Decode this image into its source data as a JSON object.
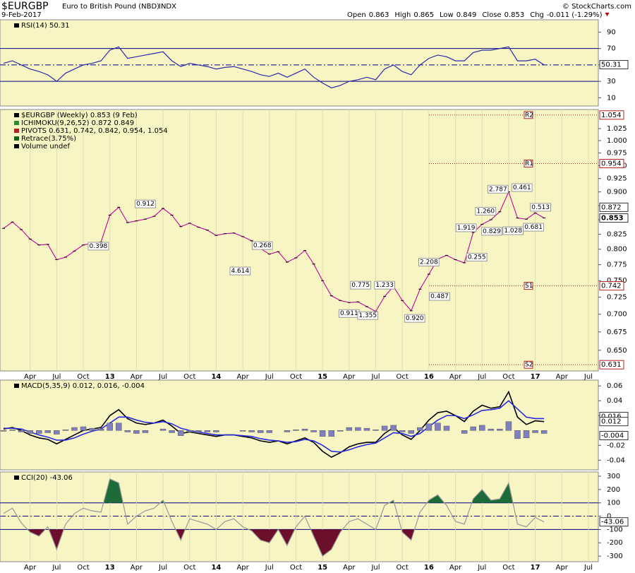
{
  "header": {
    "symbol": "$EURGBP",
    "name": "Euro to British Pound (NBD)",
    "exchange": "INDX",
    "date": "9-Feb-2017",
    "source": "© StockCharts.com",
    "quote": [
      {
        "label": "Open",
        "value": 0.863
      },
      {
        "label": "High",
        "value": 0.865
      },
      {
        "label": "Low",
        "value": 0.849
      },
      {
        "label": "Close",
        "value": 0.853
      },
      {
        "label": "Chg",
        "value": "-0.011 (-1.29%)"
      }
    ]
  },
  "chart_data": [
    {
      "type": "line",
      "panel": "rsi",
      "legend": [
        {
          "text": "RSI(14) 50.31",
          "color": "#000000"
        }
      ],
      "series": [
        {
          "name": "RSI(14)",
          "color": "#2a2aa8",
          "values": [
            52,
            55,
            50,
            45,
            42,
            38,
            30,
            40,
            45,
            50,
            52,
            55,
            68,
            72,
            58,
            60,
            62,
            64,
            66,
            55,
            48,
            52,
            50,
            48,
            45,
            47,
            48,
            45,
            42,
            38,
            36,
            40,
            35,
            40,
            45,
            35,
            28,
            22,
            25,
            30,
            32,
            35,
            32,
            45,
            50,
            42,
            38,
            50,
            58,
            62,
            60,
            55,
            55,
            65,
            68,
            68,
            70,
            72,
            55,
            55,
            57,
            50,
            null,
            null,
            null,
            null,
            null,
            null
          ]
        }
      ],
      "levels": [
        70,
        50,
        30
      ],
      "tag": 50.31,
      "ylim": [
        0,
        105
      ],
      "yticks": [
        10,
        30,
        50,
        70,
        90
      ]
    },
    {
      "type": "line",
      "panel": "price",
      "log": true,
      "legend": [
        {
          "text": "$EURGBP (Weekly) 0.853 (9 Feb)",
          "color": "#000000"
        },
        {
          "text": "ICHIMOKU(9,26,52) 0.872 0.849",
          "color": "#2e8b2e"
        },
        {
          "text": "PIVOTS 0.631, 0.742, 0.842, 0.954, 1.054",
          "color": "#b22222"
        },
        {
          "text": "Retrace(3.75%)",
          "color": "#1e5e1e"
        },
        {
          "text": "Volume undef",
          "color": "#000000"
        }
      ],
      "categories": [
        null,
        null,
        null,
        "Apr",
        null,
        null,
        "Jul",
        null,
        null,
        "Oct",
        null,
        null,
        "13",
        null,
        null,
        "Apr",
        null,
        null,
        "Jul",
        null,
        null,
        "Oct",
        null,
        null,
        "14",
        null,
        null,
        "Apr",
        null,
        null,
        "Jul",
        null,
        null,
        "Oct",
        null,
        null,
        "15",
        null,
        null,
        "Apr",
        null,
        null,
        "Jul",
        null,
        null,
        "Oct",
        null,
        null,
        "16",
        null,
        null,
        "Apr",
        null,
        null,
        "Jul",
        null,
        null,
        "Oct",
        null,
        null,
        "17",
        null,
        null,
        "Apr",
        null,
        null,
        "Jul",
        null
      ],
      "series": [
        {
          "name": "$EURGBP",
          "color": "#c0189a",
          "values": [
            0.835,
            0.846,
            0.833,
            0.817,
            0.807,
            0.808,
            0.783,
            0.787,
            0.797,
            0.807,
            0.81,
            0.812,
            0.858,
            0.872,
            0.845,
            0.848,
            0.851,
            0.856,
            0.87,
            0.858,
            0.838,
            0.844,
            0.837,
            0.832,
            0.823,
            0.826,
            0.827,
            0.821,
            0.814,
            0.801,
            0.792,
            0.796,
            0.779,
            0.786,
            0.798,
            0.776,
            0.75,
            0.727,
            0.72,
            0.717,
            0.718,
            0.711,
            0.704,
            0.726,
            0.741,
            0.72,
            0.705,
            0.737,
            0.76,
            0.784,
            0.79,
            0.783,
            0.778,
            0.828,
            0.842,
            0.85,
            0.864,
            0.9,
            0.853,
            0.851,
            0.862,
            0.853,
            null,
            null,
            null,
            null,
            null,
            null
          ]
        }
      ],
      "pivots": [
        {
          "label": "R2",
          "value": 1.054
        },
        {
          "label": "R1",
          "value": 0.954
        },
        {
          "label": "S1",
          "value": 0.742
        },
        {
          "label": "S2",
          "value": 0.631
        }
      ],
      "tags": [
        0.872,
        0.853
      ],
      "annotations": [
        {
          "text": "0.912",
          "x": 16,
          "y": 0.878
        },
        {
          "text": "0.398",
          "x": 10.7,
          "y": 0.805
        },
        {
          "text": "0.268",
          "x": 29.2,
          "y": 0.806
        },
        {
          "text": "4.614",
          "x": 26.7,
          "y": 0.765
        },
        {
          "text": "0.775",
          "x": 40.3,
          "y": 0.743
        },
        {
          "text": "1.233",
          "x": 43,
          "y": 0.743
        },
        {
          "text": "0.911",
          "x": 39,
          "y": 0.701
        },
        {
          "text": "1.355",
          "x": 41.1,
          "y": 0.698
        },
        {
          "text": "0.920",
          "x": 46.4,
          "y": 0.694
        },
        {
          "text": "0.487",
          "x": 49.2,
          "y": 0.726
        },
        {
          "text": "2.208",
          "x": 48,
          "y": 0.779
        },
        {
          "text": "1.919",
          "x": 52.2,
          "y": 0.836
        },
        {
          "text": "0.255",
          "x": 53.4,
          "y": 0.787
        },
        {
          "text": "1.260",
          "x": 54.4,
          "y": 0.865
        },
        {
          "text": "0.829",
          "x": 55.1,
          "y": 0.83
        },
        {
          "text": "1.028",
          "x": 57.5,
          "y": 0.831
        },
        {
          "text": "2.787",
          "x": 55.8,
          "y": 0.905
        },
        {
          "text": "0.461",
          "x": 58.5,
          "y": 0.908
        },
        {
          "text": "0.513",
          "x": 60.6,
          "y": 0.872
        },
        {
          "text": "0.681",
          "x": 59.8,
          "y": 0.837
        }
      ],
      "ylim": [
        0.623,
        1.066
      ],
      "yticks": [
        {
          "value": 0.65,
          "label": "0.650"
        },
        0.675,
        {
          "value": 0.7,
          "label": "0.700"
        },
        0.725,
        {
          "value": 0.75,
          "label": "0.750"
        },
        0.775,
        {
          "value": 0.8,
          "label": "0.800"
        },
        0.825,
        {
          "value": 0.85,
          "label": "0.850"
        },
        0.875,
        {
          "value": 0.9,
          "label": "0.900"
        },
        0.925,
        {
          "value": 0.95,
          "label": "0.950"
        },
        0.975,
        {
          "value": 1,
          "label": "1.000"
        },
        1.025
      ]
    },
    {
      "type": "line",
      "panel": "macd",
      "legend": [
        {
          "text": "MACD(5,35,9) 0.012, 0.016, -0.004",
          "color": "#000000"
        }
      ],
      "series": [
        {
          "name": "MACD",
          "color": "#000000",
          "values": [
            0.002,
            0.004,
            0.0,
            -0.006,
            -0.01,
            -0.012,
            -0.018,
            -0.012,
            -0.006,
            0.0,
            0.002,
            0.004,
            0.02,
            0.028,
            0.016,
            0.01,
            0.008,
            0.01,
            0.014,
            0.006,
            -0.004,
            -0.002,
            -0.004,
            -0.006,
            -0.008,
            -0.006,
            -0.006,
            -0.008,
            -0.01,
            -0.014,
            -0.016,
            -0.014,
            -0.018,
            -0.014,
            -0.01,
            -0.016,
            -0.028,
            -0.036,
            -0.03,
            -0.022,
            -0.018,
            -0.016,
            -0.016,
            -0.004,
            0.004,
            -0.006,
            -0.012,
            0.0,
            0.014,
            0.024,
            0.026,
            0.02,
            0.012,
            0.026,
            0.034,
            0.03,
            0.032,
            0.052,
            0.018,
            0.008,
            0.013,
            0.012,
            null,
            null,
            null,
            null,
            null,
            null
          ]
        },
        {
          "name": "Signal",
          "color": "#2a2ae0",
          "values": [
            0.003,
            0.003,
            0.002,
            -0.002,
            -0.006,
            -0.009,
            -0.013,
            -0.013,
            -0.01,
            -0.005,
            -0.001,
            0.002,
            0.01,
            0.018,
            0.018,
            0.014,
            0.011,
            0.01,
            0.012,
            0.009,
            0.003,
            0.0,
            -0.002,
            -0.004,
            -0.006,
            -0.006,
            -0.006,
            -0.007,
            -0.008,
            -0.011,
            -0.013,
            -0.014,
            -0.016,
            -0.015,
            -0.012,
            -0.014,
            -0.02,
            -0.028,
            -0.029,
            -0.026,
            -0.022,
            -0.019,
            -0.017,
            -0.01,
            -0.003,
            -0.004,
            -0.008,
            -0.004,
            0.005,
            0.014,
            0.02,
            0.02,
            0.016,
            0.021,
            0.027,
            0.028,
            0.03,
            0.04,
            0.029,
            0.018,
            0.016,
            0.016,
            null,
            null,
            null,
            null,
            null,
            null
          ]
        },
        {
          "name": "Histogram",
          "color": "#8080c0",
          "bars": true,
          "values": [
            -0.001,
            0.001,
            -0.002,
            -0.004,
            -0.004,
            -0.003,
            -0.005,
            0.001,
            0.004,
            0.005,
            0.003,
            0.002,
            0.01,
            0.01,
            -0.002,
            -0.004,
            -0.003,
            0.0,
            0.002,
            -0.003,
            -0.007,
            -0.002,
            -0.002,
            -0.002,
            -0.002,
            0.0,
            0.0,
            -0.001,
            -0.002,
            -0.003,
            -0.003,
            0.0,
            -0.002,
            0.001,
            0.002,
            -0.002,
            -0.008,
            -0.008,
            -0.001,
            0.004,
            0.004,
            0.003,
            0.001,
            0.006,
            0.007,
            -0.002,
            -0.004,
            0.004,
            0.009,
            0.01,
            0.006,
            0.0,
            -0.004,
            0.005,
            0.007,
            0.002,
            0.002,
            0.012,
            -0.011,
            -0.01,
            -0.003,
            -0.004,
            null,
            null,
            null,
            null,
            null,
            null
          ]
        }
      ],
      "tags": [
        0.016,
        0.012,
        -0.004
      ],
      "ylim": [
        -0.053,
        0.0678
      ],
      "yticks": [
        -0.04,
        -0.02,
        0.02,
        0.04,
        0.06
      ]
    },
    {
      "type": "line",
      "panel": "cci",
      "legend": [
        {
          "text": "CCI(20) -43.06",
          "color": "#000000"
        }
      ],
      "categories": [
        null,
        null,
        null,
        "Apr",
        null,
        null,
        "Jul",
        null,
        null,
        "Oct",
        null,
        null,
        "13",
        null,
        null,
        "Apr",
        null,
        null,
        "Jul",
        null,
        null,
        "Oct",
        null,
        null,
        "14",
        null,
        null,
        "Apr",
        null,
        null,
        "Jul",
        null,
        null,
        "Oct",
        null,
        null,
        "15",
        null,
        null,
        "Apr",
        null,
        null,
        "Jul",
        null,
        null,
        "Oct",
        null,
        null,
        "16",
        null,
        null,
        "Apr",
        null,
        null,
        "Jul",
        null,
        null,
        "Oct",
        null,
        null,
        "17",
        null,
        null,
        "Apr",
        null,
        null,
        "Jul",
        null
      ],
      "series": [
        {
          "name": "CCI(20)",
          "color": "#999999",
          "values": [
            20,
            60,
            -50,
            -120,
            -150,
            -80,
            -250,
            -60,
            20,
            60,
            40,
            30,
            280,
            250,
            -60,
            0,
            40,
            60,
            120,
            -40,
            -180,
            -20,
            -40,
            -60,
            -100,
            -40,
            -20,
            -80,
            -110,
            -180,
            -200,
            -100,
            -220,
            -80,
            0,
            -150,
            -300,
            -250,
            -120,
            -40,
            -20,
            -60,
            -100,
            80,
            120,
            -120,
            -180,
            30,
            120,
            160,
            80,
            -40,
            -60,
            130,
            200,
            120,
            130,
            250,
            -60,
            -80,
            -10,
            -43.06,
            null,
            null,
            null,
            null,
            null,
            null
          ]
        }
      ],
      "levels": [
        100,
        0,
        -100
      ],
      "tag": -43.06,
      "ylim": [
        -342,
        332
      ],
      "yticks": [
        -300,
        -200,
        -100,
        0,
        100,
        200,
        300
      ]
    }
  ]
}
